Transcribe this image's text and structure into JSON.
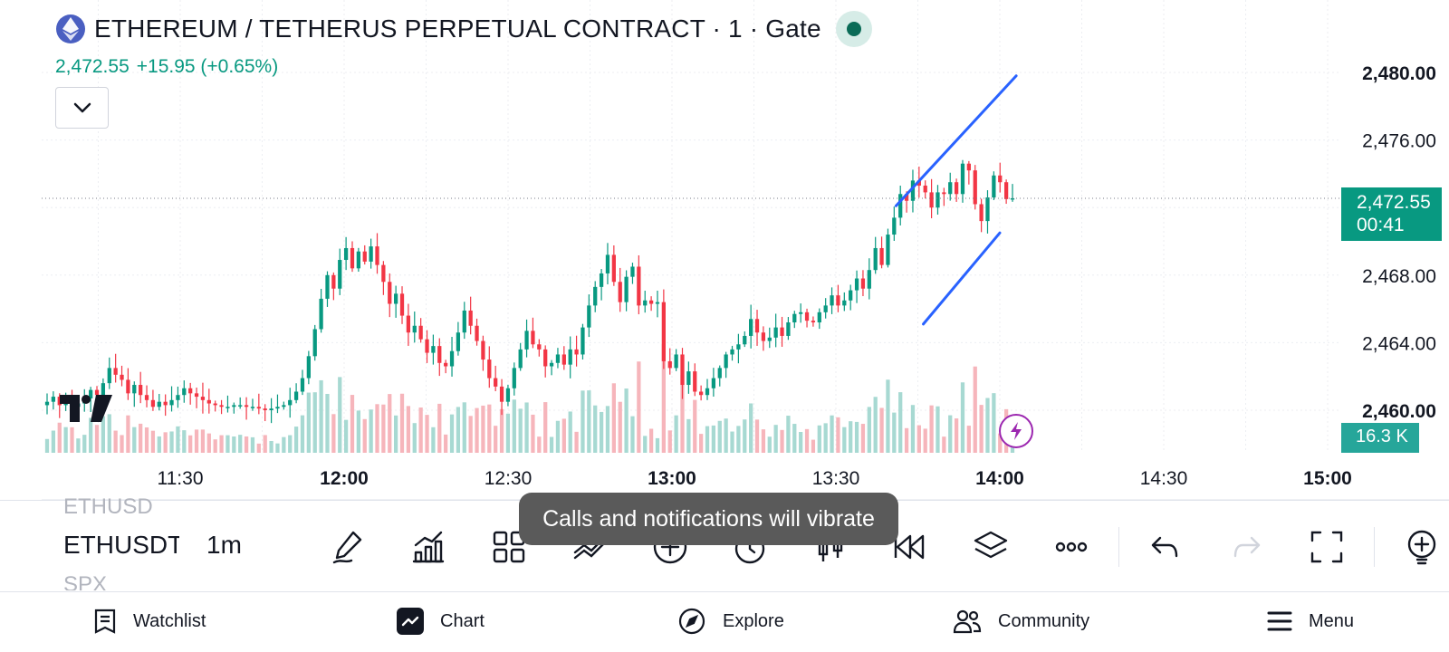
{
  "header": {
    "title": "ETHEREUM / TETHERUS PERPETUAL CONTRACT · 1 · Gate",
    "price": "2,472.55",
    "change": "+15.95 (+0.65%)",
    "market_status": "open",
    "logo_icon": "ethereum-icon"
  },
  "price_axis": {
    "labels": [
      "2,480.00",
      "2,476.00",
      "2,468.00",
      "2,464.00",
      "2,460.00"
    ],
    "current_price_tag": "2,472.55",
    "countdown": "00:41",
    "volume_tag": "16.3 K"
  },
  "time_axis": {
    "labels": [
      "11:30",
      "12:00",
      "12:30",
      "13:00",
      "13:30",
      "14:00",
      "14:30",
      "15:00"
    ],
    "bold": [
      "12:00",
      "13:00",
      "14:00",
      "15:00"
    ]
  },
  "chart_data": {
    "type": "candlestick",
    "interval": "1m",
    "ylim": [
      2458.0,
      2481.0
    ],
    "y_ticks": [
      2460,
      2464,
      2468,
      2476,
      2480
    ],
    "x_ticks": [
      "11:30",
      "12:00",
      "12:30",
      "13:00",
      "13:30",
      "14:00",
      "14:30",
      "15:00"
    ],
    "last_price": 2472.55,
    "series_close": [
      2460.5,
      2460.8,
      2460.3,
      2460.6,
      2460.2,
      2460.4,
      2460.7,
      2461.2,
      2460.9,
      2461.6,
      2462.5,
      2462.1,
      2461.8,
      2461.0,
      2461.5,
      2460.9,
      2460.6,
      2460.2,
      2460.5,
      2460.3,
      2460.6,
      2460.9,
      2461.3,
      2461.0,
      2460.8,
      2460.6,
      2460.4,
      2460.3,
      2460.2,
      2460.2,
      2460.3,
      2460.3,
      2460.2,
      2460.2,
      2460.1,
      2460.0,
      2460.1,
      2460.2,
      2460.3,
      2460.6,
      2461.1,
      2461.9,
      2463.2,
      2464.8,
      2466.6,
      2468.0,
      2467.2,
      2468.9,
      2469.6,
      2468.4,
      2469.4,
      2468.8,
      2469.7,
      2468.6,
      2467.6,
      2466.3,
      2466.9,
      2465.6,
      2464.6,
      2465.0,
      2464.2,
      2463.4,
      2463.8,
      2462.8,
      2462.6,
      2463.5,
      2464.6,
      2465.9,
      2465.0,
      2464.1,
      2463.0,
      2461.9,
      2461.4,
      2460.5,
      2461.3,
      2462.5,
      2463.6,
      2464.7,
      2463.9,
      2463.6,
      2462.6,
      2462.8,
      2463.3,
      2462.7,
      2463.6,
      2463.3,
      2464.9,
      2466.2,
      2467.3,
      2468.1,
      2469.2,
      2467.6,
      2466.4,
      2467.9,
      2468.5,
      2466.2,
      2466.5,
      2466.3,
      2466.4,
      2462.9,
      2462.5,
      2463.3,
      2461.5,
      2462.3,
      2461.1,
      2460.9,
      2461.3,
      2461.9,
      2462.5,
      2463.3,
      2463.6,
      2463.9,
      2464.4,
      2465.4,
      2464.6,
      2464.1,
      2464.3,
      2464.9,
      2464.4,
      2465.2,
      2465.7,
      2465.8,
      2465.3,
      2465.2,
      2465.8,
      2466.2,
      2466.8,
      2466.2,
      2466.5,
      2467.1,
      2467.8,
      2467.2,
      2468.3,
      2469.6,
      2468.6,
      2470.4,
      2471.4,
      2472.8,
      2472.4,
      2473.6,
      2473.3,
      2472.9,
      2472.0,
      2472.9,
      2472.8,
      2473.5,
      2472.8,
      2474.6,
      2474.2,
      2472.2,
      2471.2,
      2472.6,
      2473.9,
      2473.5,
      2472.5,
      2472.55
    ]
  },
  "trendlines": [
    {
      "from": [
        "13:41",
        2472.1
      ],
      "to": [
        "14:03",
        2479.8
      ]
    },
    {
      "from": [
        "13:46",
        2465.1
      ],
      "to": [
        "14:00",
        2470.5
      ]
    }
  ],
  "toolbar": {
    "symbol_prev": "ETHUSD",
    "symbol_current": "ETHUSDT",
    "symbol_next": "SPX",
    "interval": "1m",
    "icons": [
      "pencil-icon",
      "indicators-icon",
      "grid-icon",
      "trend-tools-icon",
      "plus-icon",
      "alarm-icon",
      "candles-icon",
      "replay-icon",
      "layers-icon",
      "more-icon",
      "undo-icon",
      "redo-icon",
      "fullscreen-icon",
      "add-idea-icon"
    ]
  },
  "toast": {
    "message": "Calls and notifications will vibrate"
  },
  "nav": {
    "watchlist": "Watchlist",
    "chart": "Chart",
    "explore": "Explore",
    "community": "Community",
    "menu": "Menu"
  },
  "colors": {
    "up": "#089981",
    "down": "#f23645",
    "trendline": "#2962ff",
    "flash": "#9c27b0"
  }
}
